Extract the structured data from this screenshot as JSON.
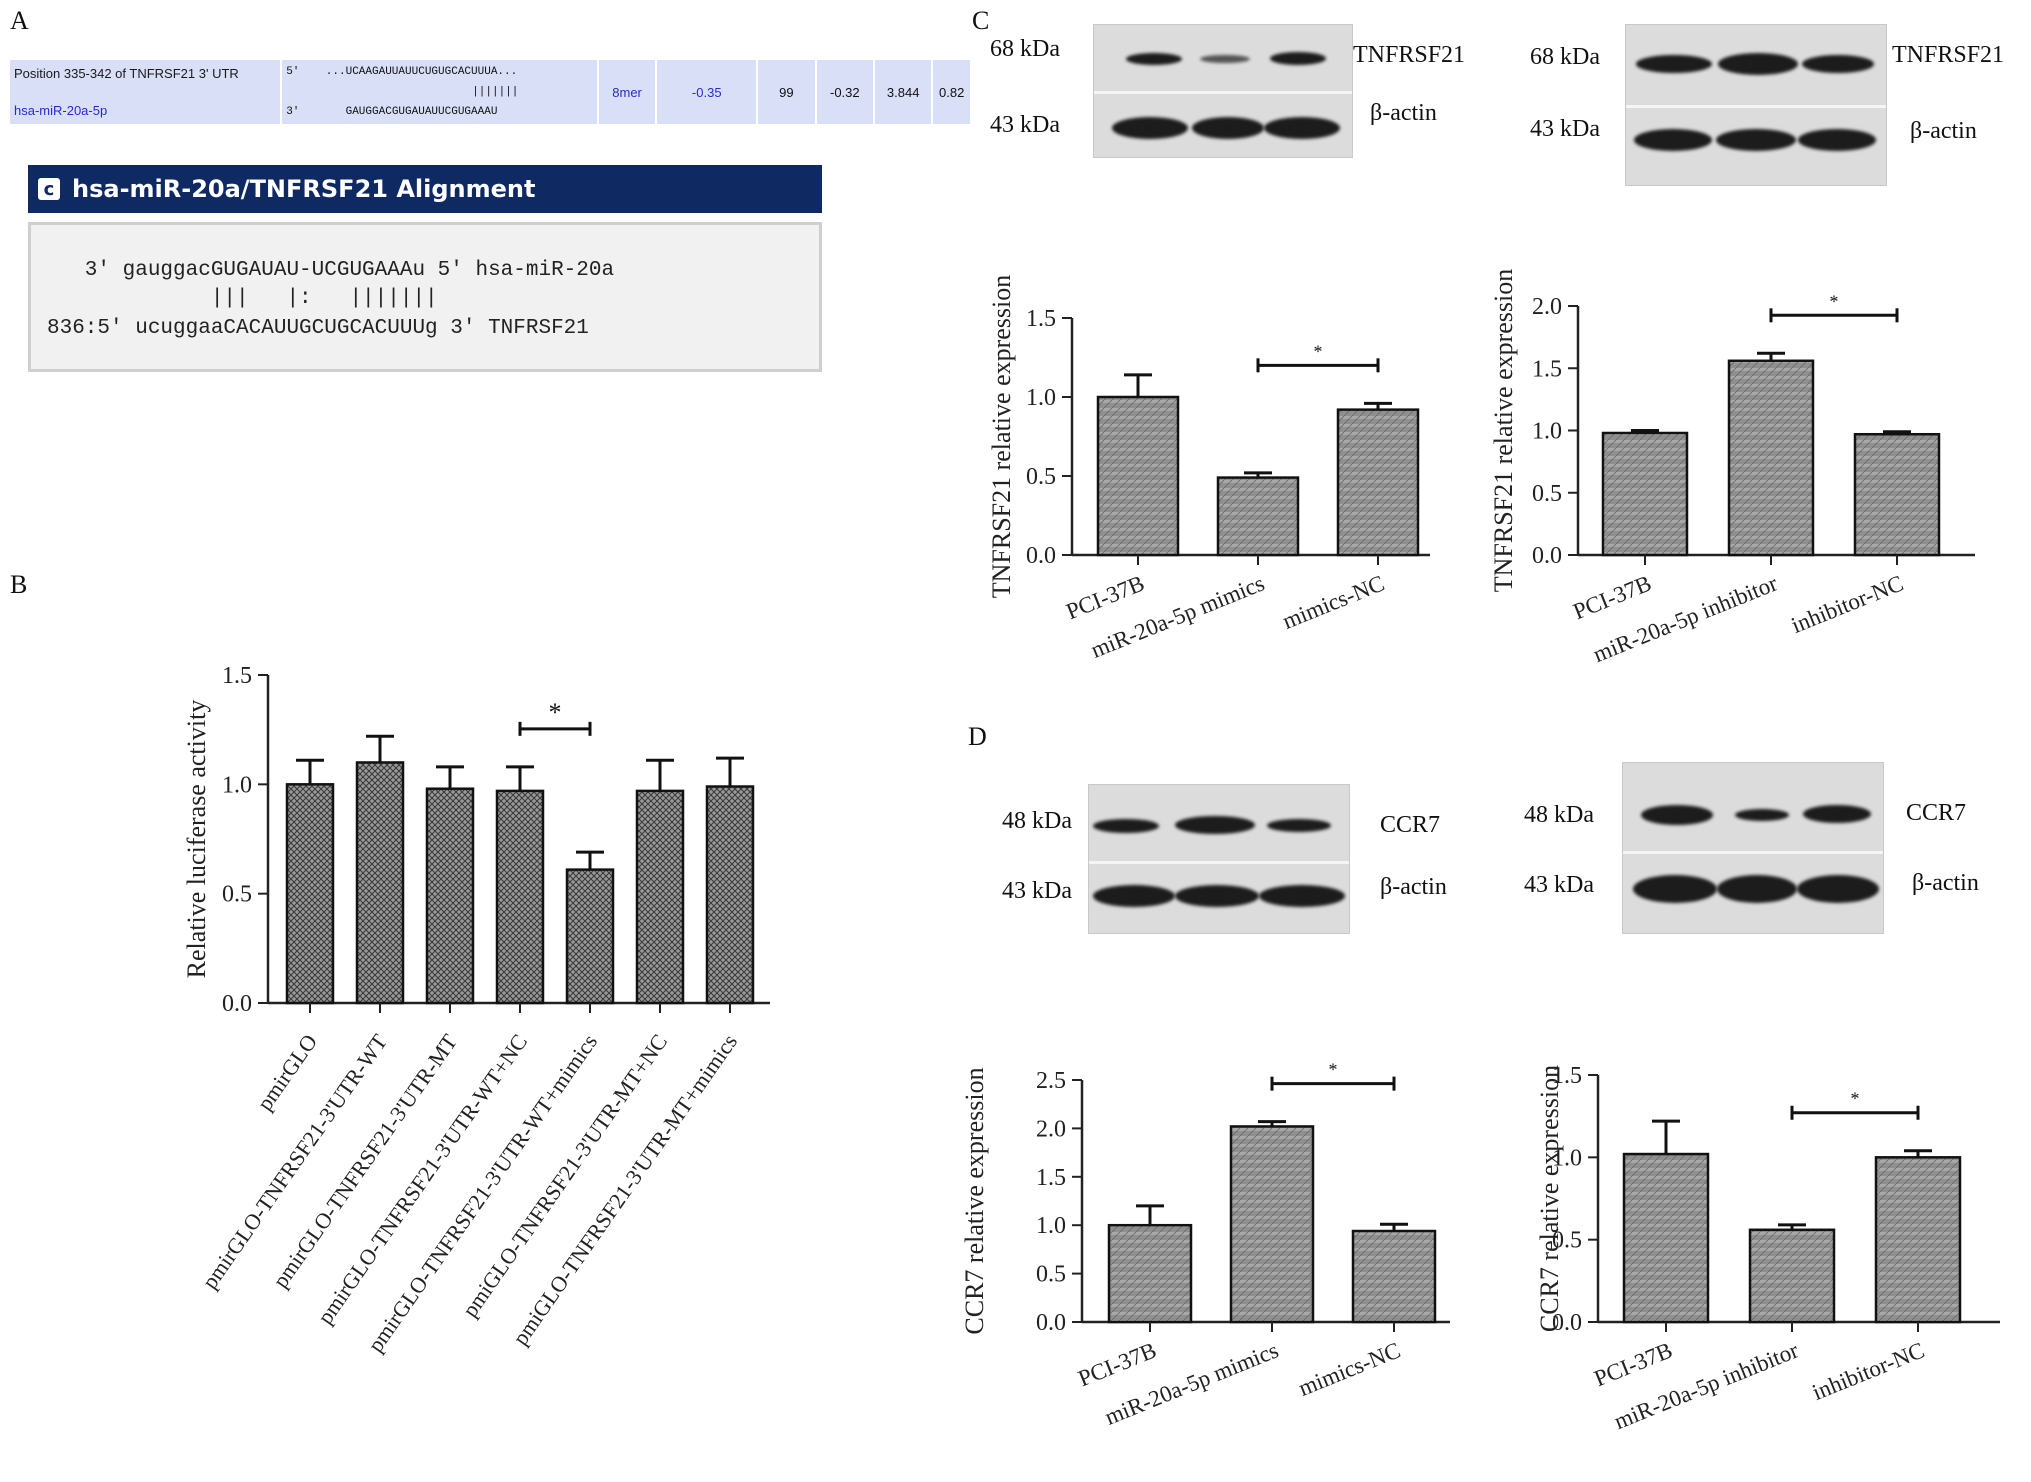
{
  "panels": {
    "a": "A",
    "b": "B",
    "c": "C",
    "d": "D"
  },
  "targetscan": {
    "position": "Position 335-342 of TNFRSF21 3' UTR",
    "mirna": "hsa-miR-20a-5p",
    "utr_prime": "5'",
    "mir_prime": "3'",
    "utr_seq": "...UCAAGAUUAUUCUGUGCACUUUA...",
    "pairs": "|||||||",
    "mir_seq": "GAUGGACGUGAUAUUCGUGAAAU",
    "site_type": "8mer",
    "context_score": "-0.35",
    "percentile": "99",
    "weighted": "-0.32",
    "conserved": "3.844",
    "pct": "0.82"
  },
  "miranda": {
    "title": "hsa-miR-20a/TNFRSF21 Alignment",
    "line1": "   3' gauggacGUGAUAU-UCGUGAAAu 5' hsa-miR-20a",
    "line2": "             |||   |:   |||||||",
    "line3": "836:5' ucuggaaCACAUUGCUGCACUUUg 3' TNFRSF21"
  },
  "blots": {
    "c_left": {
      "top_kda": "68 kDa",
      "bot_kda": "43 kDa",
      "top_name": "TNFRSF21",
      "bot_name": "β-actin"
    },
    "c_right": {
      "top_kda": "68 kDa",
      "bot_kda": "43 kDa",
      "top_name": "TNFRSF21",
      "bot_name": "β-actin"
    },
    "d_left": {
      "top_kda": "48 kDa",
      "bot_kda": "43 kDa",
      "top_name": "CCR7",
      "bot_name": "β-actin"
    },
    "d_right": {
      "top_kda": "48 kDa",
      "bot_kda": "43 kDa",
      "top_name": "CCR7",
      "bot_name": "β-actin"
    }
  },
  "chart_data": [
    {
      "id": "B",
      "type": "bar",
      "categories": [
        "pmirGLO",
        "pmirGLO-TNFRSF21-3'UTR-WT",
        "pmirGLO-TNFRSF21-3'UTR-MT",
        "pmirGLO-TNFRSF21-3'UTR-WT+NC",
        "pmirGLO-TNFRSF21-3'UTR-WT+mimics",
        "pmiGLO-TNFRSF21-3'UTR-MT+NC",
        "pmiGLO-TNFRSF21-3'UTR-MT+mimics"
      ],
      "values": [
        1.0,
        1.1,
        0.98,
        0.97,
        0.61,
        0.97,
        0.99
      ],
      "errors": [
        0.11,
        0.12,
        0.1,
        0.11,
        0.08,
        0.14,
        0.13
      ],
      "ylabel": "Relative luciferase activity",
      "ylim": [
        0,
        1.5
      ],
      "ticks": [
        "0.0",
        "0.5",
        "1.0",
        "1.5"
      ],
      "significance": {
        "from": 3,
        "to": 4,
        "label": "*"
      }
    },
    {
      "id": "C-left",
      "type": "bar",
      "categories": [
        "PCI-37B",
        "miR-20a-5p mimics",
        "mimics-NC"
      ],
      "values": [
        1.0,
        0.49,
        0.92
      ],
      "errors": [
        0.14,
        0.03,
        0.04
      ],
      "ylabel": "TNFRSF21 relative expression",
      "ylim": [
        0,
        1.5
      ],
      "ticks": [
        "0.0",
        "0.5",
        "1.0",
        "1.5"
      ],
      "significance": {
        "from": 1,
        "to": 2,
        "label": "*"
      }
    },
    {
      "id": "C-right",
      "type": "bar",
      "categories": [
        "PCI-37B",
        "miR-20a-5p inhibitor",
        "inhibitor-NC"
      ],
      "values": [
        0.98,
        1.56,
        0.97
      ],
      "errors": [
        0.02,
        0.06,
        0.02
      ],
      "ylabel": "TNFRSF21 relative expression",
      "ylim": [
        0,
        2.0
      ],
      "ticks": [
        "0.0",
        "0.5",
        "1.0",
        "1.5",
        "2.0"
      ],
      "significance": {
        "from": 1,
        "to": 2,
        "label": "*"
      }
    },
    {
      "id": "D-left",
      "type": "bar",
      "categories": [
        "PCI-37B",
        "miR-20a-5p mimics",
        "mimics-NC"
      ],
      "values": [
        1.0,
        2.02,
        0.94
      ],
      "errors": [
        0.2,
        0.05,
        0.07
      ],
      "ylabel": "CCR7 relative expression",
      "ylim": [
        0,
        2.5
      ],
      "ticks": [
        "0.0",
        "0.5",
        "1.0",
        "1.5",
        "2.0",
        "2.5"
      ],
      "significance": {
        "from": 1,
        "to": 2,
        "label": "*"
      }
    },
    {
      "id": "D-right",
      "type": "bar",
      "categories": [
        "PCI-37B",
        "miR-20a-5p inhibitor",
        "inhibitor-NC"
      ],
      "values": [
        1.02,
        0.56,
        1.0
      ],
      "errors": [
        0.2,
        0.03,
        0.04
      ],
      "ylabel": "CCR7 relative expression",
      "ylim": [
        0,
        1.5
      ],
      "ticks": [
        "0.0",
        "0.5",
        "1.0",
        "1.5"
      ],
      "significance": {
        "from": 1,
        "to": 2,
        "label": "*"
      }
    }
  ]
}
